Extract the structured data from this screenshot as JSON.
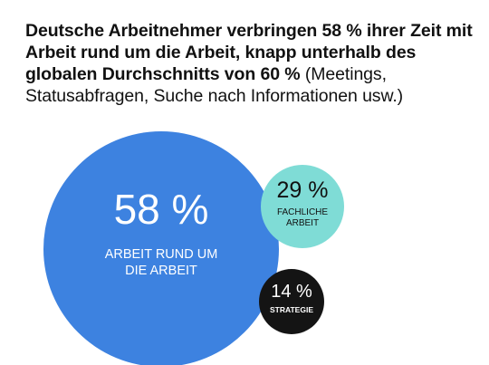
{
  "headline": {
    "bold_text": "Deutsche Arbeitnehmer verbringen 58 % ihrer Zeit mit Arbeit rund um die Arbeit, knapp unterhalb des globalen Durchschnitts von 60 %",
    "normal_text": " (Meetings, Statusabfragen, Suche nach Informationen usw.)"
  },
  "chart_data": {
    "type": "bubble",
    "title": "",
    "unit": "%",
    "series": [
      {
        "value": 58,
        "display": "58 %",
        "label_lines": [
          "ARBEIT RUND UM",
          "DIE ARBEIT"
        ],
        "color": "#3d82e0",
        "text_color": "#ffffff"
      },
      {
        "value": 29,
        "display": "29 %",
        "label_lines": [
          "FACHLICHE",
          "ARBEIT"
        ],
        "color": "#7fdcd6",
        "text_color": "#111111"
      },
      {
        "value": 14,
        "display": "14 %",
        "label_lines": [
          "STRATEGIE"
        ],
        "color": "#141414",
        "text_color": "#ffffff"
      }
    ]
  }
}
